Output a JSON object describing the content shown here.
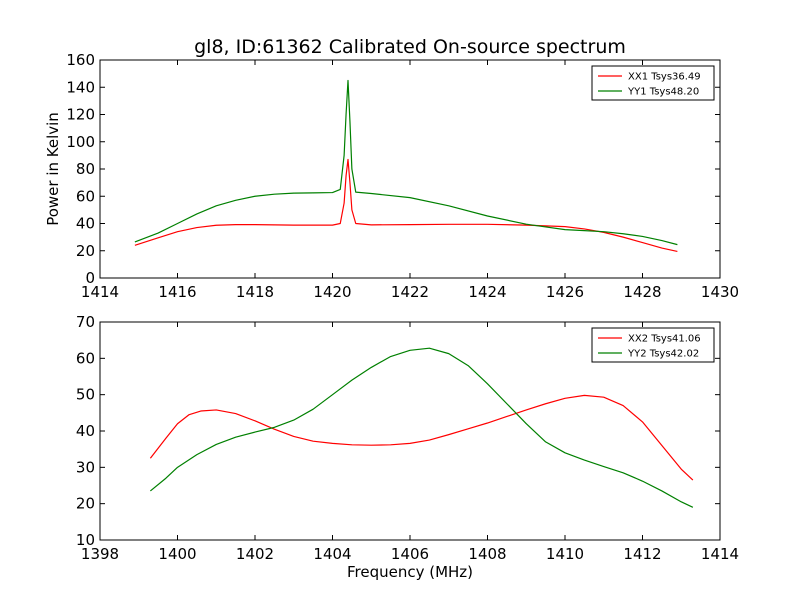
{
  "chart_data": [
    {
      "type": "line",
      "title": "gl8, ID:61362 Calibrated On-source spectrum",
      "xlabel": "",
      "ylabel": "Power in Kelvin",
      "xlim": [
        1414,
        1430
      ],
      "ylim": [
        0,
        160
      ],
      "xticks": [
        1414,
        1416,
        1418,
        1420,
        1422,
        1424,
        1426,
        1428,
        1430
      ],
      "yticks": [
        0,
        20,
        40,
        60,
        80,
        100,
        120,
        140,
        160
      ],
      "legend_position": "top-right",
      "grid": false,
      "series": [
        {
          "name": "XX1 Tsys36.49",
          "color": "#ff0000",
          "x": [
            1414.9,
            1415.5,
            1416.0,
            1416.5,
            1417.0,
            1417.5,
            1418.0,
            1418.5,
            1419.0,
            1419.5,
            1420.0,
            1420.2,
            1420.3,
            1420.35,
            1420.4,
            1420.45,
            1420.5,
            1420.6,
            1421.0,
            1422.0,
            1423.0,
            1424.0,
            1425.0,
            1426.0,
            1426.5,
            1427.0,
            1427.5,
            1428.0,
            1428.5,
            1428.9
          ],
          "y": [
            24,
            29.5,
            34,
            37,
            38.7,
            39.2,
            39.2,
            39,
            38.8,
            38.8,
            38.8,
            40,
            55,
            75,
            87,
            70,
            50,
            40,
            39,
            39.2,
            39.4,
            39.4,
            38.8,
            37.7,
            36,
            33.5,
            30,
            26,
            22,
            19.5
          ]
        },
        {
          "name": "YY1 Tsys48.20",
          "color": "#008000",
          "x": [
            1414.9,
            1415.5,
            1416.0,
            1416.5,
            1417.0,
            1417.5,
            1418.0,
            1418.5,
            1419.0,
            1419.5,
            1420.0,
            1420.2,
            1420.3,
            1420.35,
            1420.4,
            1420.45,
            1420.5,
            1420.6,
            1421.0,
            1422.0,
            1423.0,
            1424.0,
            1425.0,
            1426.0,
            1426.5,
            1427.0,
            1427.5,
            1428.0,
            1428.5,
            1428.9
          ],
          "y": [
            26.5,
            33,
            40,
            47,
            53,
            57,
            60,
            61.5,
            62.3,
            62.5,
            62.7,
            65,
            90,
            120,
            145,
            115,
            80,
            63,
            62,
            59,
            53,
            45.5,
            39.5,
            35.5,
            34.8,
            34,
            32.5,
            30.5,
            27.5,
            24.5
          ]
        }
      ]
    },
    {
      "type": "line",
      "title": "",
      "xlabel": "Frequency (MHz)",
      "ylabel": "",
      "xlim": [
        1398,
        1414
      ],
      "ylim": [
        10,
        70
      ],
      "xticks": [
        1398,
        1400,
        1402,
        1404,
        1406,
        1408,
        1410,
        1412,
        1414
      ],
      "yticks": [
        10,
        20,
        30,
        40,
        50,
        60,
        70
      ],
      "legend_position": "top-right",
      "grid": false,
      "series": [
        {
          "name": "XX2 Tsys41.06",
          "color": "#ff0000",
          "x": [
            1399.3,
            1399.7,
            1400.0,
            1400.3,
            1400.6,
            1401.0,
            1401.5,
            1402.0,
            1402.5,
            1403.0,
            1403.5,
            1404.0,
            1404.5,
            1405.0,
            1405.5,
            1406.0,
            1406.5,
            1407.0,
            1407.5,
            1408.0,
            1408.5,
            1409.0,
            1409.5,
            1410.0,
            1410.5,
            1411.0,
            1411.5,
            1412.0,
            1412.5,
            1413.0,
            1413.3
          ],
          "y": [
            32.5,
            38,
            42,
            44.5,
            45.5,
            45.8,
            44.8,
            42.8,
            40.5,
            38.5,
            37.2,
            36.6,
            36.2,
            36.1,
            36.2,
            36.6,
            37.5,
            39,
            40.6,
            42.2,
            44,
            45.8,
            47.5,
            49,
            49.8,
            49.3,
            47,
            42.5,
            36,
            29.5,
            26.5
          ]
        },
        {
          "name": "YY2 Tsys42.02",
          "color": "#008000",
          "x": [
            1399.3,
            1399.7,
            1400.0,
            1400.5,
            1401.0,
            1401.5,
            1402.0,
            1402.5,
            1403.0,
            1403.5,
            1404.0,
            1404.5,
            1405.0,
            1405.5,
            1406.0,
            1406.5,
            1407.0,
            1407.5,
            1408.0,
            1408.5,
            1409.0,
            1409.5,
            1410.0,
            1410.5,
            1411.0,
            1411.5,
            1412.0,
            1412.5,
            1413.0,
            1413.3
          ],
          "y": [
            23.5,
            27,
            30,
            33.5,
            36.3,
            38.3,
            39.7,
            41,
            43,
            46,
            50,
            54,
            57.5,
            60.5,
            62.2,
            62.8,
            61.3,
            58,
            53,
            47.5,
            42,
            37,
            34,
            32,
            30.2,
            28.5,
            26.2,
            23.5,
            20.5,
            19
          ]
        }
      ]
    }
  ]
}
